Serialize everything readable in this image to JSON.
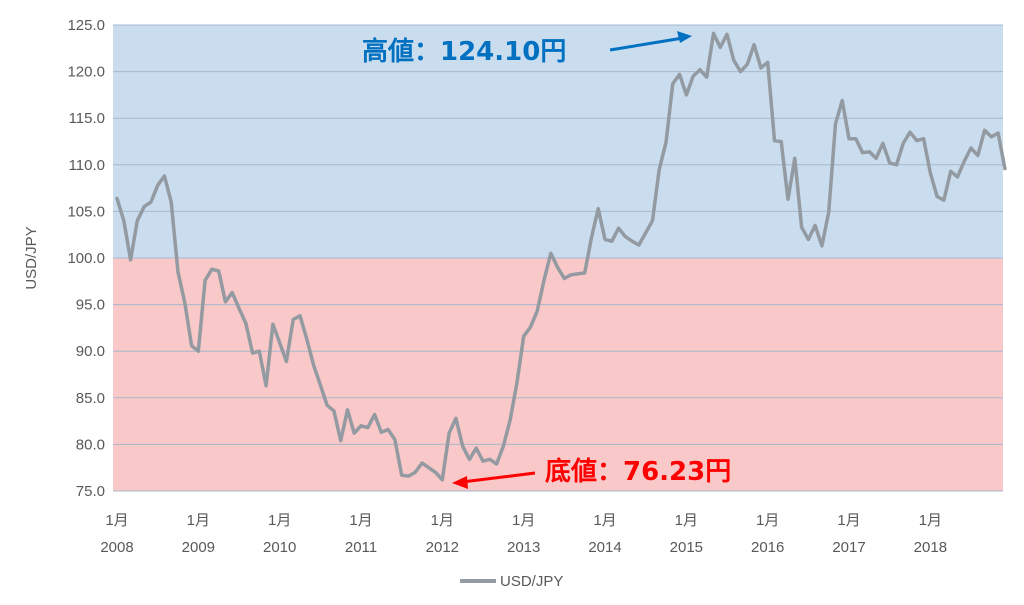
{
  "chart_data": {
    "type": "line",
    "ylabel": "USD/JPY",
    "ylim": [
      75.0,
      125.0
    ],
    "y_ticks": [
      "75.0",
      "80.0",
      "85.0",
      "90.0",
      "95.0",
      "100.0",
      "105.0",
      "110.0",
      "115.0",
      "120.0",
      "125.0"
    ],
    "x_ticks": [
      {
        "month": "1月",
        "year": "2008"
      },
      {
        "month": "1月",
        "year": "2009"
      },
      {
        "month": "1月",
        "year": "2010"
      },
      {
        "month": "1月",
        "year": "2011"
      },
      {
        "month": "1月",
        "year": "2012"
      },
      {
        "month": "1月",
        "year": "2013"
      },
      {
        "month": "1月",
        "year": "2014"
      },
      {
        "month": "1月",
        "year": "2015"
      },
      {
        "month": "1月",
        "year": "2016"
      },
      {
        "month": "1月",
        "year": "2017"
      },
      {
        "month": "1月",
        "year": "2018"
      }
    ],
    "grid": true,
    "legend_position": "bottom",
    "background_bands": [
      {
        "from": 100.0,
        "to": 125.0,
        "color": "#c9ddef"
      },
      {
        "from": 75.0,
        "to": 100.0,
        "color": "#f9c8c8"
      }
    ],
    "series": [
      {
        "name": "USD/JPY",
        "color": "#939aa1",
        "x": [
          "2008-01",
          "2008-02",
          "2008-03",
          "2008-04",
          "2008-05",
          "2008-06",
          "2008-07",
          "2008-08",
          "2008-09",
          "2008-10",
          "2008-11",
          "2008-12",
          "2009-01",
          "2009-02",
          "2009-03",
          "2009-04",
          "2009-05",
          "2009-06",
          "2009-07",
          "2009-08",
          "2009-09",
          "2009-10",
          "2009-11",
          "2009-12",
          "2010-01",
          "2010-02",
          "2010-03",
          "2010-04",
          "2010-05",
          "2010-06",
          "2010-07",
          "2010-08",
          "2010-09",
          "2010-10",
          "2010-11",
          "2010-12",
          "2011-01",
          "2011-02",
          "2011-03",
          "2011-04",
          "2011-05",
          "2011-06",
          "2011-07",
          "2011-08",
          "2011-09",
          "2011-10",
          "2011-11",
          "2011-12",
          "2012-01",
          "2012-02",
          "2012-03",
          "2012-04",
          "2012-05",
          "2012-06",
          "2012-07",
          "2012-08",
          "2012-09",
          "2012-10",
          "2012-11",
          "2012-12",
          "2013-01",
          "2013-02",
          "2013-03",
          "2013-04",
          "2013-05",
          "2013-06",
          "2013-07",
          "2013-08",
          "2013-09",
          "2013-10",
          "2013-11",
          "2013-12",
          "2014-01",
          "2014-02",
          "2014-03",
          "2014-04",
          "2014-05",
          "2014-06",
          "2014-07",
          "2014-08",
          "2014-09",
          "2014-10",
          "2014-11",
          "2014-12",
          "2015-01",
          "2015-02",
          "2015-03",
          "2015-04",
          "2015-05",
          "2015-06",
          "2015-07",
          "2015-08",
          "2015-09",
          "2015-10",
          "2015-11",
          "2015-12",
          "2016-01",
          "2016-02",
          "2016-03",
          "2016-04",
          "2016-05",
          "2016-06",
          "2016-07",
          "2016-08",
          "2016-09",
          "2016-10",
          "2016-11",
          "2016-12",
          "2017-01",
          "2017-02",
          "2017-03",
          "2017-04",
          "2017-05",
          "2017-06",
          "2017-07",
          "2017-08",
          "2017-09",
          "2017-10",
          "2017-11",
          "2017-12",
          "2018-01",
          "2018-02",
          "2018-03",
          "2018-04",
          "2018-05",
          "2018-06",
          "2018-07",
          "2018-08",
          "2018-09",
          "2018-10",
          "2018-11",
          "2018-12"
        ],
        "values": [
          106.4,
          104.0,
          99.8,
          104.0,
          105.5,
          106.0,
          107.8,
          108.8,
          106.0,
          98.5,
          95.2,
          90.6,
          90.0,
          97.6,
          98.8,
          98.6,
          95.3,
          96.3,
          94.6,
          93.0,
          89.8,
          90.0,
          86.3,
          92.9,
          90.9,
          88.9,
          93.4,
          93.8,
          91.3,
          88.5,
          86.4,
          84.2,
          83.6,
          80.4,
          83.7,
          81.2,
          82.0,
          81.8,
          83.2,
          81.3,
          81.6,
          80.5,
          76.7,
          76.6,
          77.0,
          78.0,
          77.5,
          77.0,
          76.2,
          81.2,
          82.8,
          79.8,
          78.4,
          79.6,
          78.2,
          78.4,
          77.9,
          79.8,
          82.6,
          86.6,
          91.6,
          92.6,
          94.3,
          97.6,
          100.5,
          99.0,
          97.8,
          98.2,
          98.3,
          98.4,
          102.2,
          105.3,
          102.0,
          101.8,
          103.2,
          102.3,
          101.8,
          101.4,
          102.7,
          104.0,
          109.5,
          112.4,
          118.7,
          119.7,
          117.5,
          119.5,
          120.2,
          119.4,
          124.1,
          122.6,
          124.0,
          121.2,
          120.0,
          120.8,
          122.9,
          120.4,
          121.0,
          112.6,
          112.5,
          106.3,
          110.7,
          103.3,
          102.0,
          103.5,
          101.3,
          104.9,
          114.4,
          116.9,
          112.8,
          112.8,
          111.3,
          111.4,
          110.7,
          112.3,
          110.2,
          110.0,
          112.3,
          113.5,
          112.6,
          112.8,
          109.1,
          106.6,
          106.2,
          109.3,
          108.7,
          110.4,
          111.8,
          111.0,
          113.7,
          113.0,
          113.4,
          109.6
        ]
      }
    ],
    "annotations": {
      "high": {
        "label": "高値：124.10円",
        "value": 124.1,
        "x": "2015-05",
        "color": "#0070c0"
      },
      "low": {
        "label": "底値：76.23円",
        "value": 76.23,
        "x": "2012-01",
        "color": "#ff0000"
      }
    }
  }
}
